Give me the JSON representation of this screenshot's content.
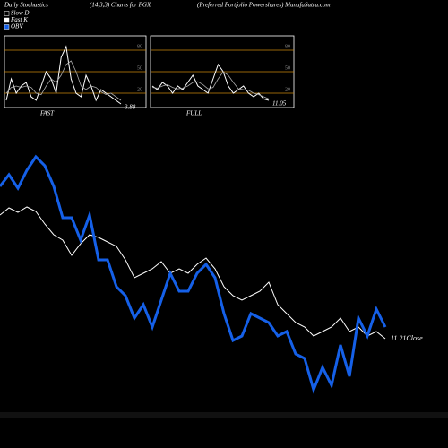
{
  "header": {
    "left": "Daily Stochastics",
    "middle": "(14,3,3) Charts for PGX",
    "right": "(Preferred Portfolio  Powershares) MunafaSutra.com"
  },
  "legend": [
    {
      "name": "Slow D",
      "color": "#000000"
    },
    {
      "name": "Fast K",
      "color": "#ffffff"
    },
    {
      "name": "OBV",
      "color": "#1560e8"
    }
  ],
  "chart_data": [
    {
      "type": "line",
      "annotation": "11.21Close",
      "series": [
        {
          "color": "#ffffff",
          "values": [
            260,
            268,
            263,
            269,
            264,
            250,
            238,
            232,
            215,
            228,
            238,
            235,
            230,
            225,
            210,
            190,
            195,
            200,
            208,
            195,
            200,
            195,
            205,
            212,
            200,
            180,
            170,
            165,
            170,
            175,
            185,
            160,
            150,
            140,
            135,
            125,
            130,
            135,
            145,
            130,
            135,
            125,
            130,
            122
          ]
        },
        {
          "color": "#1560e8",
          "values": [
            292,
            305,
            290,
            310,
            325,
            315,
            292,
            257,
            257,
            232,
            260,
            210,
            210,
            180,
            170,
            145,
            160,
            135,
            165,
            195,
            175,
            175,
            195,
            205,
            190,
            150,
            120,
            125,
            150,
            145,
            140,
            125,
            130,
            105,
            100,
            65,
            90,
            70,
            115,
            80,
            145,
            125,
            155,
            135
          ]
        }
      ]
    },
    {
      "type": "stoch",
      "label": "FAST",
      "value_label": "3.88",
      "ylim": [
        0,
        100
      ],
      "yticks": [
        20,
        50,
        80
      ],
      "tick_color": "#c8860a",
      "series": [
        {
          "color": "#ffffff",
          "values": [
            10,
            40,
            20,
            30,
            35,
            15,
            10,
            30,
            50,
            40,
            20,
            70,
            85,
            40,
            20,
            15,
            45,
            30,
            10,
            25,
            20,
            15,
            10,
            5
          ]
        },
        {
          "color": "#aaaaaa",
          "values": [
            20,
            28,
            30,
            28,
            30,
            28,
            20,
            18,
            30,
            40,
            35,
            45,
            60,
            65,
            50,
            30,
            25,
            30,
            28,
            22,
            18,
            20,
            15,
            10
          ]
        }
      ]
    },
    {
      "type": "stoch",
      "label": "FULL",
      "value_label": "11.05",
      "ylim": [
        0,
        100
      ],
      "yticks": [
        20,
        50,
        80
      ],
      "tick_color": "#c8860a",
      "series": [
        {
          "color": "#ffffff",
          "values": [
            30,
            25,
            35,
            30,
            20,
            30,
            25,
            35,
            45,
            30,
            25,
            20,
            40,
            60,
            50,
            30,
            20,
            25,
            30,
            20,
            15,
            20,
            12,
            10
          ]
        },
        {
          "color": "#aaaaaa",
          "values": [
            28,
            27,
            30,
            32,
            28,
            26,
            27,
            30,
            35,
            36,
            32,
            26,
            28,
            40,
            50,
            45,
            35,
            26,
            25,
            24,
            20,
            18,
            15,
            12
          ]
        }
      ]
    }
  ]
}
